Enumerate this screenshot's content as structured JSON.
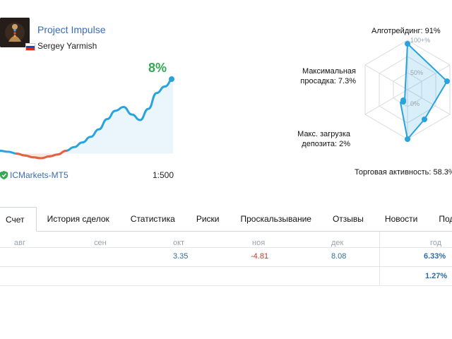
{
  "profile": {
    "title": "Project Impulse",
    "author": "Sergey Yarmish"
  },
  "card": {
    "gain": "8%",
    "broker": "ICMarkets-MT5",
    "leverage": "1:500"
  },
  "radar": {
    "labels": {
      "algo": "Алготрейдинг: 91%",
      "drawdown_1": "Максимальная",
      "drawdown_2": "просадка: 7.3%",
      "load_1": "Макс. загрузка",
      "load_2": "депозита: 2%",
      "activity": "Торговая активность: 58.3%"
    },
    "scale": {
      "top": "100+%",
      "mid": "50%",
      "zero": "0%"
    }
  },
  "tabs": [
    "Счет",
    "История сделок",
    "Статистика",
    "Риски",
    "Проскальзывание",
    "Отзывы",
    "Новости",
    "Под"
  ],
  "table": {
    "headers": [
      "авг",
      "сен",
      "окт",
      "ноя",
      "дек",
      "год"
    ],
    "row1": {
      "oct": "3.35",
      "nov": "-4.81",
      "dec": "8.08",
      "year": "6.33%"
    },
    "row2": {
      "year": "1.27%"
    }
  },
  "colors": {
    "accent": "#3a6cb5",
    "line_up": "#29a3de",
    "line_down": "#e8603c",
    "gain": "#34a853",
    "negative": "#c0392b"
  },
  "chart_data": {
    "type": "area",
    "series": [
      {
        "values": [
          0.3,
          0.2,
          0.0,
          -0.2,
          -0.4,
          -0.5,
          -0.3,
          -0.1,
          0.3,
          0.7,
          1.2,
          1.8,
          2.6,
          3.7,
          4.6,
          5.0,
          4.2,
          3.6,
          4.8,
          6.5,
          7.2,
          8.0
        ]
      }
    ]
  }
}
